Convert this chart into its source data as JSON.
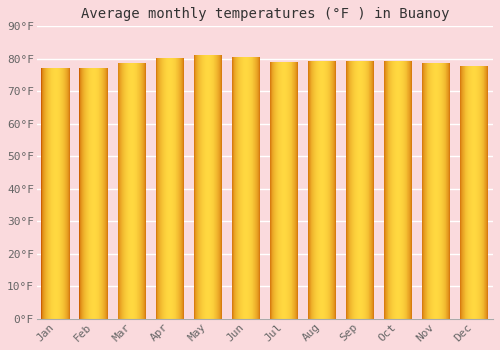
{
  "title": "Average monthly temperatures (°F ) in Buanoy",
  "months": [
    "Jan",
    "Feb",
    "Mar",
    "Apr",
    "May",
    "Jun",
    "Jul",
    "Aug",
    "Sep",
    "Oct",
    "Nov",
    "Dec"
  ],
  "values": [
    77.2,
    77.2,
    78.6,
    80.2,
    81.3,
    80.6,
    79.0,
    79.3,
    79.3,
    79.3,
    78.8,
    77.9
  ],
  "bar_color_left": "#E07800",
  "bar_color_mid": "#FFD040",
  "bar_color_right": "#E89010",
  "background_color": "#FADADD",
  "plot_bg_color": "#FADADD",
  "grid_color": "#FFFFFF",
  "text_color": "#666666",
  "ylim": [
    0,
    90
  ],
  "yticks": [
    0,
    10,
    20,
    30,
    40,
    50,
    60,
    70,
    80,
    90
  ],
  "ytick_labels": [
    "0°F",
    "10°F",
    "20°F",
    "30°F",
    "40°F",
    "50°F",
    "60°F",
    "70°F",
    "80°F",
    "90°F"
  ],
  "title_fontsize": 10,
  "tick_fontsize": 8,
  "font_family": "monospace"
}
